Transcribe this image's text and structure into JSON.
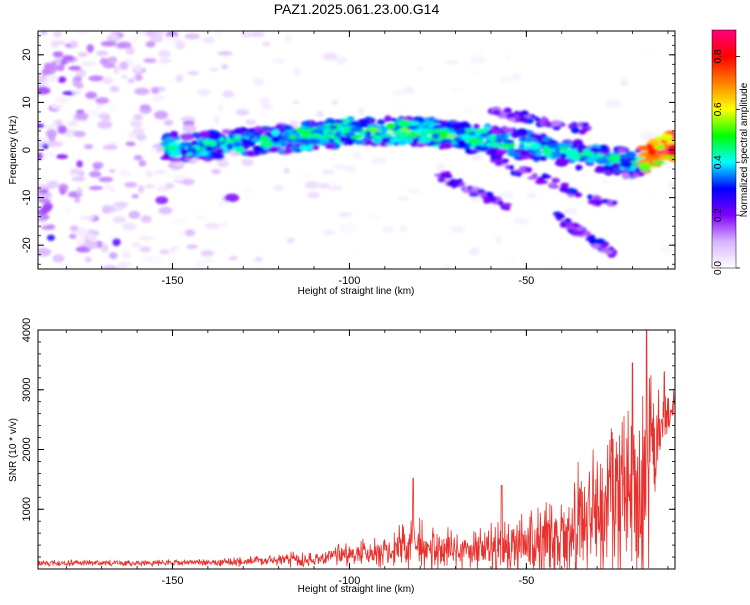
{
  "figure": {
    "title": "PAZ1.2025.061.23.00.G14"
  },
  "chart_data": [
    {
      "type": "heatmap",
      "xlabel": "Height of straight line (km)",
      "ylabel": "Frequency (Hz)",
      "xlim": [
        -188,
        -8
      ],
      "ylim": [
        -25,
        25
      ],
      "xticks": [
        -150,
        -100,
        -50
      ],
      "yticks": [
        -20,
        -10,
        0,
        10,
        20
      ],
      "colorbar": {
        "label": "Normalized spectral amplitude",
        "range": [
          0,
          0.9
        ],
        "ticks": [
          "0.0",
          "0.2",
          "0.4",
          "0.6",
          "0.8"
        ],
        "colors": [
          "#ffffff",
          "#d9b3ff",
          "#8000ff",
          "#0000ff",
          "#00ffff",
          "#00ff00",
          "#ffff00",
          "#ff8000",
          "#ff0000",
          "#ff0080"
        ]
      },
      "ridge": [
        {
          "x": -150,
          "f": 0.5
        },
        {
          "x": -140,
          "f": 0.8
        },
        {
          "x": -130,
          "f": 1.5
        },
        {
          "x": -120,
          "f": 2.2
        },
        {
          "x": -110,
          "f": 3.0
        },
        {
          "x": -100,
          "f": 4.0
        },
        {
          "x": -90,
          "f": 4.0
        },
        {
          "x": -80,
          "f": 3.8
        },
        {
          "x": -70,
          "f": 3.0
        },
        {
          "x": -60,
          "f": 2.0
        },
        {
          "x": -50,
          "f": 1.0
        },
        {
          "x": -40,
          "f": -0.5
        },
        {
          "x": -30,
          "f": -1.5
        },
        {
          "x": -20,
          "f": -3.0
        },
        {
          "x": -10,
          "f": 0.5
        }
      ],
      "branches": [
        {
          "from_x": -60,
          "to_x": -30,
          "f_from": 8,
          "f_to": 4
        },
        {
          "from_x": -60,
          "to_x": -25,
          "f_from": -2,
          "f_to": -12
        },
        {
          "from_x": -75,
          "to_x": -55,
          "f_from": -5,
          "f_to": -12
        },
        {
          "from_x": -42,
          "to_x": -25,
          "f_from": -14,
          "f_to": -22
        }
      ]
    },
    {
      "type": "line",
      "xlabel": "Height of straight line (km)",
      "ylabel": "SNR (10 * v/v)",
      "xlim": [
        -188,
        -8
      ],
      "ylim": [
        0,
        4000
      ],
      "xticks": [
        -150,
        -100,
        -50
      ],
      "yticks": [
        1000,
        2000,
        3000,
        4000
      ],
      "series": [
        {
          "color": "#e8312d",
          "envelope": [
            {
              "x": -188,
              "mean": 100,
              "amp": 60
            },
            {
              "x": -160,
              "mean": 100,
              "amp": 60
            },
            {
              "x": -140,
              "mean": 110,
              "amp": 70
            },
            {
              "x": -120,
              "mean": 140,
              "amp": 120
            },
            {
              "x": -110,
              "mean": 180,
              "amp": 180
            },
            {
              "x": -100,
              "mean": 240,
              "amp": 240
            },
            {
              "x": -90,
              "mean": 300,
              "amp": 320
            },
            {
              "x": -82,
              "mean": 420,
              "amp": 650
            },
            {
              "x": -75,
              "mean": 330,
              "amp": 420
            },
            {
              "x": -65,
              "mean": 300,
              "amp": 380
            },
            {
              "x": -58,
              "mean": 380,
              "amp": 600
            },
            {
              "x": -50,
              "mean": 400,
              "amp": 650
            },
            {
              "x": -40,
              "mean": 550,
              "amp": 900
            },
            {
              "x": -30,
              "mean": 900,
              "amp": 1500
            },
            {
              "x": -22,
              "mean": 1200,
              "amp": 2300
            },
            {
              "x": -17,
              "mean": 1300,
              "amp": 2600
            },
            {
              "x": -12,
              "mean": 2300,
              "amp": 900
            },
            {
              "x": -8,
              "mean": 2700,
              "amp": 300
            }
          ],
          "peaks": [
            {
              "x": -82,
              "y": 1520
            },
            {
              "x": -57,
              "y": 1400
            },
            {
              "x": -20,
              "y": 3450
            },
            {
              "x": -16,
              "y": 4000
            },
            {
              "x": -11,
              "y": 3300
            }
          ]
        }
      ]
    }
  ]
}
